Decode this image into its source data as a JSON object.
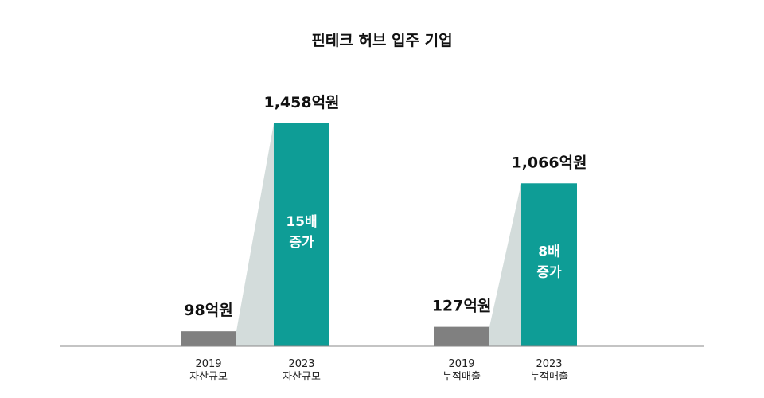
{
  "chart_data": {
    "type": "bar",
    "title": "핀테크 허브 입주 기업",
    "unit": "억원",
    "colors": {
      "before": "#808080",
      "after": "#0e9d96",
      "connector": "#d3dcdb",
      "axis": "#888888"
    },
    "groups": [
      {
        "name": "자산규모",
        "bars": [
          {
            "year": "2019",
            "category": "자산규모",
            "value": 98,
            "label": "98억원"
          },
          {
            "year": "2023",
            "category": "자산규모",
            "value": 1458,
            "label": "1,458억원"
          }
        ],
        "growth_label": [
          "15배",
          "증가"
        ]
      },
      {
        "name": "누적매출",
        "bars": [
          {
            "year": "2019",
            "category": "누적매출",
            "value": 127,
            "label": "127억원"
          },
          {
            "year": "2023",
            "category": "누적매출",
            "value": 1066,
            "label": "1,066억원"
          }
        ],
        "growth_label": [
          "8배",
          "증가"
        ]
      }
    ]
  }
}
